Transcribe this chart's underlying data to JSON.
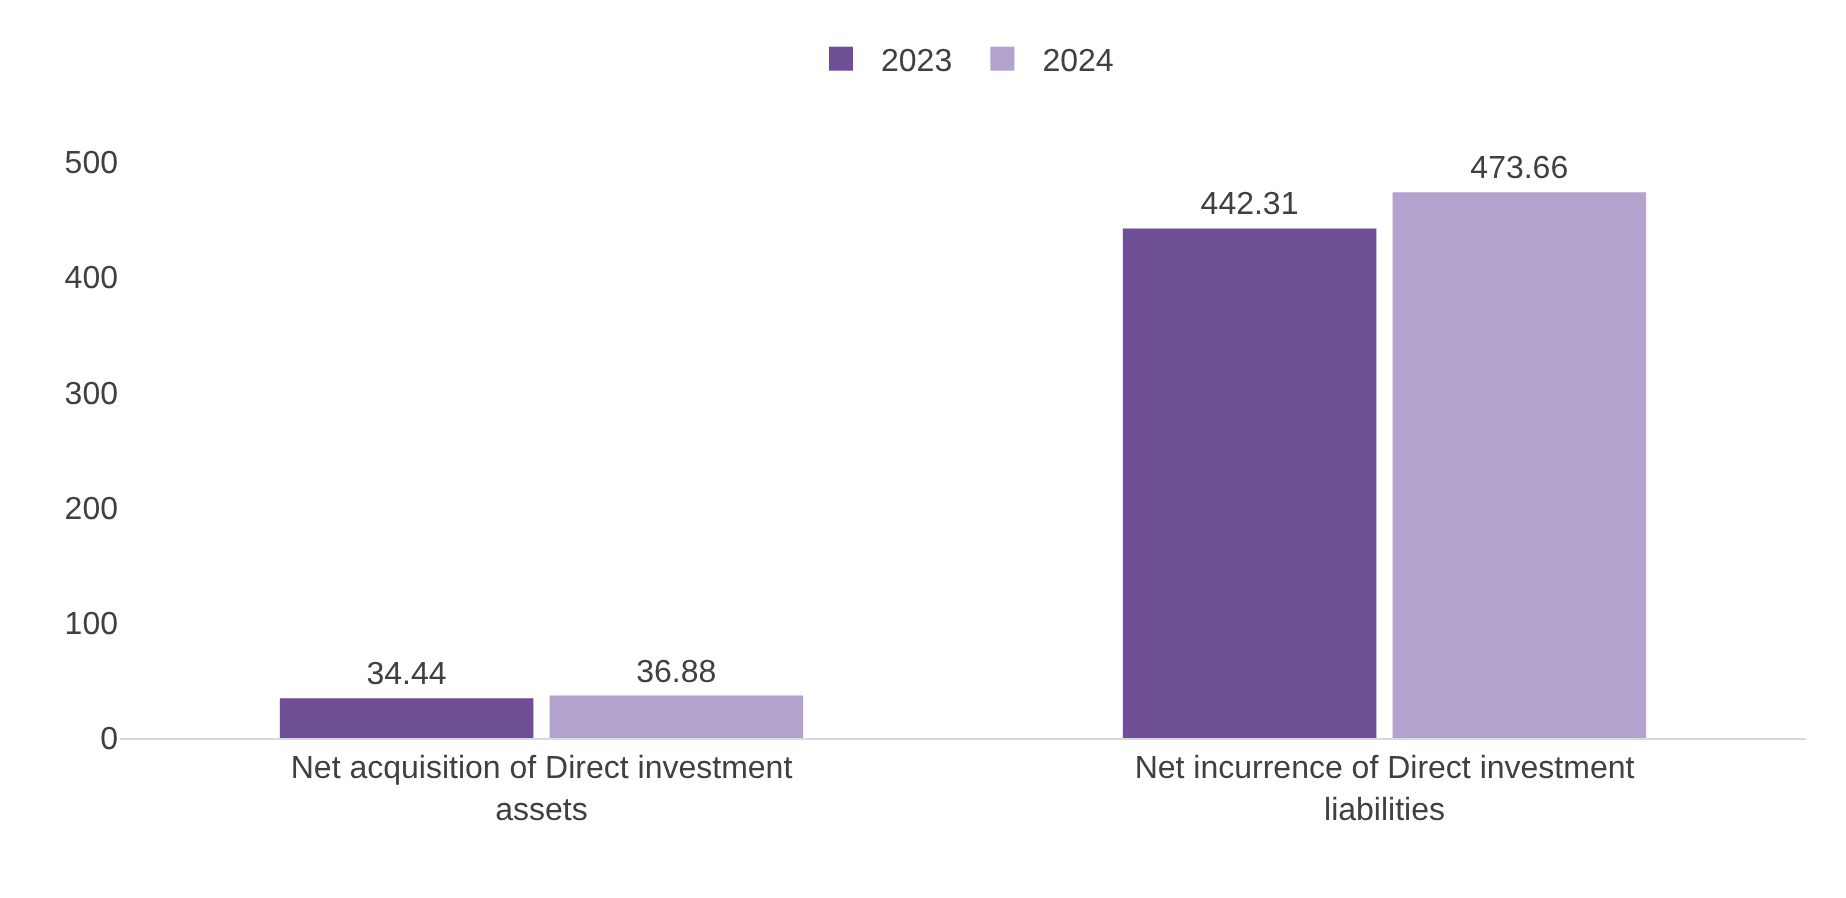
{
  "chart_data": {
    "type": "bar",
    "categories": [
      "Net acquisition of Direct investment assets",
      "Net incurrence of Direct investment liabilities"
    ],
    "series": [
      {
        "name": "2023",
        "color": "#6e4f96",
        "values": [
          34.44,
          442.31
        ]
      },
      {
        "name": "2024",
        "color": "#b3a2cd",
        "values": [
          36.88,
          473.66
        ]
      }
    ],
    "ylim": [
      0,
      500
    ],
    "yticks": [
      0,
      100,
      200,
      300,
      400,
      500
    ],
    "legend": "top",
    "data_labels": true
  }
}
